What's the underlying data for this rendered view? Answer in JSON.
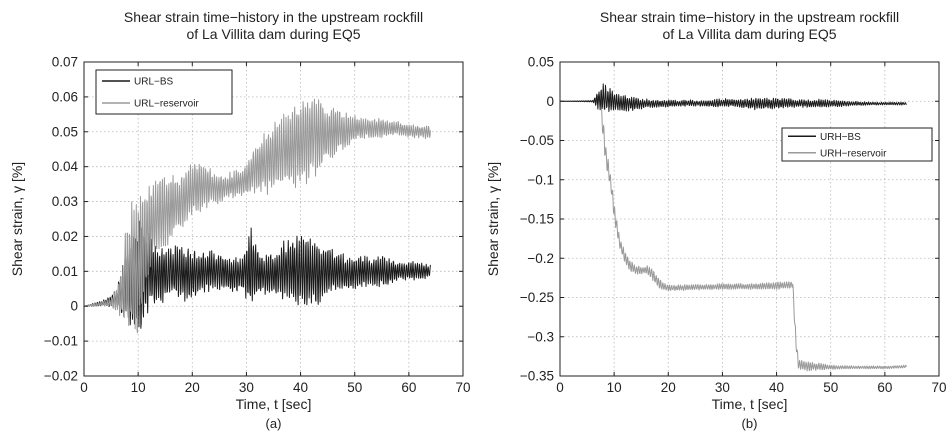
{
  "chart_data": [
    {
      "type": "line",
      "panel_label": "(a)",
      "title_lines": [
        "Shear strain time−history in the upstream rockfill",
        "of La Villita dam during EQ5"
      ],
      "xlabel": "Time, t [sec]",
      "ylabel": "Shear strain, γ [%]",
      "xlim": [
        0,
        70
      ],
      "ylim": [
        -0.02,
        0.07
      ],
      "xticks": [
        0,
        10,
        20,
        30,
        40,
        50,
        60,
        70
      ],
      "yticks": [
        -0.02,
        -0.01,
        0,
        0.01,
        0.02,
        0.03,
        0.04,
        0.05,
        0.06,
        0.07
      ],
      "xtick_labels": [
        "0",
        "10",
        "20",
        "30",
        "40",
        "50",
        "60",
        "70"
      ],
      "ytick_labels": [
        "−0.02",
        "−0.01",
        "0",
        "0.01",
        "0.02",
        "0.03",
        "0.04",
        "0.05",
        "0.06",
        "0.07"
      ],
      "grid": true,
      "legend_position": "upper-left",
      "series": [
        {
          "name": "URL−BS",
          "color": "#1a1a1a",
          "x": [
            0,
            4,
            6,
            7,
            8,
            9,
            10,
            11,
            12,
            13,
            15,
            17,
            19,
            21,
            23,
            25,
            27,
            29,
            31,
            33,
            35,
            37,
            39,
            41,
            43,
            45,
            47,
            49,
            51,
            53,
            55,
            58,
            61,
            64
          ],
          "y": [
            0,
            0.001,
            0.002,
            0.004,
            0.006,
            0.007,
            0.009,
            0.009,
            0.01,
            0.009,
            0.009,
            0.01,
            0.009,
            0.009,
            0.01,
            0.01,
            0.009,
            0.009,
            0.011,
            0.009,
            0.009,
            0.01,
            0.01,
            0.01,
            0.009,
            0.01,
            0.01,
            0.009,
            0.01,
            0.01,
            0.01,
            0.01,
            0.01,
            0.01
          ],
          "envelope": [
            0,
            0.001,
            0.003,
            0.008,
            0.012,
            0.016,
            0.018,
            0.017,
            0.012,
            0.009,
            0.008,
            0.008,
            0.009,
            0.007,
            0.006,
            0.006,
            0.006,
            0.005,
            0.013,
            0.006,
            0.007,
            0.009,
            0.011,
            0.012,
            0.01,
            0.008,
            0.006,
            0.005,
            0.005,
            0.004,
            0.005,
            0.003,
            0.003,
            0.002
          ]
        },
        {
          "name": "URL−reservoir",
          "color": "#9a9a9a",
          "x": [
            0,
            5,
            6,
            7,
            8,
            9,
            10,
            11,
            12,
            14,
            16,
            18,
            20,
            22,
            24,
            26,
            28,
            30,
            32,
            34,
            36,
            38,
            40,
            42,
            44,
            46,
            48,
            50,
            52,
            55,
            58,
            61,
            64
          ],
          "y": [
            0,
            0.001,
            0.002,
            0.004,
            0.01,
            0.012,
            0.01,
            0.018,
            0.022,
            0.026,
            0.028,
            0.03,
            0.033,
            0.035,
            0.034,
            0.034,
            0.035,
            0.036,
            0.04,
            0.042,
            0.044,
            0.045,
            0.047,
            0.049,
            0.049,
            0.05,
            0.05,
            0.051,
            0.051,
            0.051,
            0.051,
            0.05,
            0.05
          ],
          "envelope": [
            0,
            0.001,
            0.004,
            0.009,
            0.017,
            0.02,
            0.022,
            0.018,
            0.014,
            0.012,
            0.01,
            0.008,
            0.009,
            0.008,
            0.005,
            0.004,
            0.004,
            0.005,
            0.008,
            0.01,
            0.011,
            0.012,
            0.014,
            0.014,
            0.01,
            0.008,
            0.006,
            0.004,
            0.003,
            0.003,
            0.002,
            0.002,
            0.002
          ]
        }
      ]
    },
    {
      "type": "line",
      "panel_label": "(b)",
      "title_lines": [
        "Shear strain time−history in the upstream rockfill",
        "of La Villita dam during EQ5"
      ],
      "xlabel": "Time, t [sec]",
      "ylabel": "Shear strain, γ [%]",
      "xlim": [
        0,
        70
      ],
      "ylim": [
        -0.35,
        0.05
      ],
      "xticks": [
        0,
        10,
        20,
        30,
        40,
        50,
        60,
        70
      ],
      "yticks": [
        -0.35,
        -0.3,
        -0.25,
        -0.2,
        -0.15,
        -0.1,
        -0.05,
        0,
        0.05
      ],
      "xtick_labels": [
        "0",
        "10",
        "20",
        "30",
        "40",
        "50",
        "60",
        "70"
      ],
      "ytick_labels": [
        "−0.35",
        "−0.3",
        "−0.25",
        "−0.2",
        "−0.15",
        "−0.1",
        "−0.05",
        "0",
        "0.05"
      ],
      "grid": true,
      "legend_position": "right",
      "series": [
        {
          "name": "URH−reservoir",
          "color": "#9a9a9a",
          "x": [
            0,
            6,
            7,
            7.5,
            8,
            8.5,
            9,
            9.5,
            10,
            10.5,
            11,
            11.5,
            12,
            12.5,
            13,
            14,
            15,
            16,
            17,
            18,
            19,
            20,
            25,
            30,
            35,
            40,
            42,
            43,
            43.5,
            44,
            46,
            48,
            50,
            55,
            60,
            64
          ],
          "y": [
            0,
            0,
            0.005,
            0,
            -0.04,
            -0.07,
            -0.09,
            -0.11,
            -0.14,
            -0.16,
            -0.18,
            -0.19,
            -0.2,
            -0.205,
            -0.21,
            -0.215,
            -0.215,
            -0.215,
            -0.22,
            -0.23,
            -0.236,
            -0.238,
            -0.237,
            -0.236,
            -0.236,
            -0.235,
            -0.234,
            -0.234,
            -0.3,
            -0.335,
            -0.338,
            -0.338,
            -0.339,
            -0.339,
            -0.339,
            -0.338
          ],
          "envelope": [
            0,
            0.001,
            0.006,
            0.01,
            0.015,
            0.015,
            0.012,
            0.012,
            0.01,
            0.01,
            0.008,
            0.008,
            0.01,
            0.008,
            0.008,
            0.006,
            0.005,
            0.006,
            0.008,
            0.008,
            0.006,
            0.004,
            0.004,
            0.004,
            0.004,
            0.005,
            0.005,
            0.005,
            0.01,
            0.008,
            0.006,
            0.005,
            0.003,
            0.002,
            0.002,
            0.002
          ]
        },
        {
          "name": "URH−BS",
          "color": "#1a1a1a",
          "x": [
            0,
            6,
            7,
            8,
            9,
            10,
            11,
            12,
            14,
            16,
            18,
            20,
            22,
            24,
            26,
            28,
            30,
            32,
            34,
            36,
            38,
            40,
            42,
            44,
            46,
            48,
            50,
            52,
            55,
            58,
            61,
            64
          ],
          "y": [
            0,
            0,
            0.002,
            0.004,
            0.002,
            0,
            -0.002,
            -0.003,
            -0.003,
            -0.003,
            -0.003,
            -0.003,
            -0.003,
            -0.002,
            -0.003,
            -0.003,
            -0.002,
            -0.002,
            -0.003,
            -0.003,
            -0.003,
            -0.003,
            -0.002,
            -0.003,
            -0.003,
            -0.003,
            -0.003,
            -0.003,
            -0.003,
            -0.003,
            -0.003,
            -0.003
          ],
          "envelope": [
            0,
            0.001,
            0.012,
            0.02,
            0.018,
            0.014,
            0.01,
            0.012,
            0.008,
            0.006,
            0.005,
            0.005,
            0.004,
            0.004,
            0.004,
            0.005,
            0.006,
            0.005,
            0.006,
            0.008,
            0.007,
            0.008,
            0.006,
            0.005,
            0.005,
            0.006,
            0.005,
            0.004,
            0.003,
            0.002,
            0.002,
            0.002
          ]
        }
      ]
    }
  ]
}
